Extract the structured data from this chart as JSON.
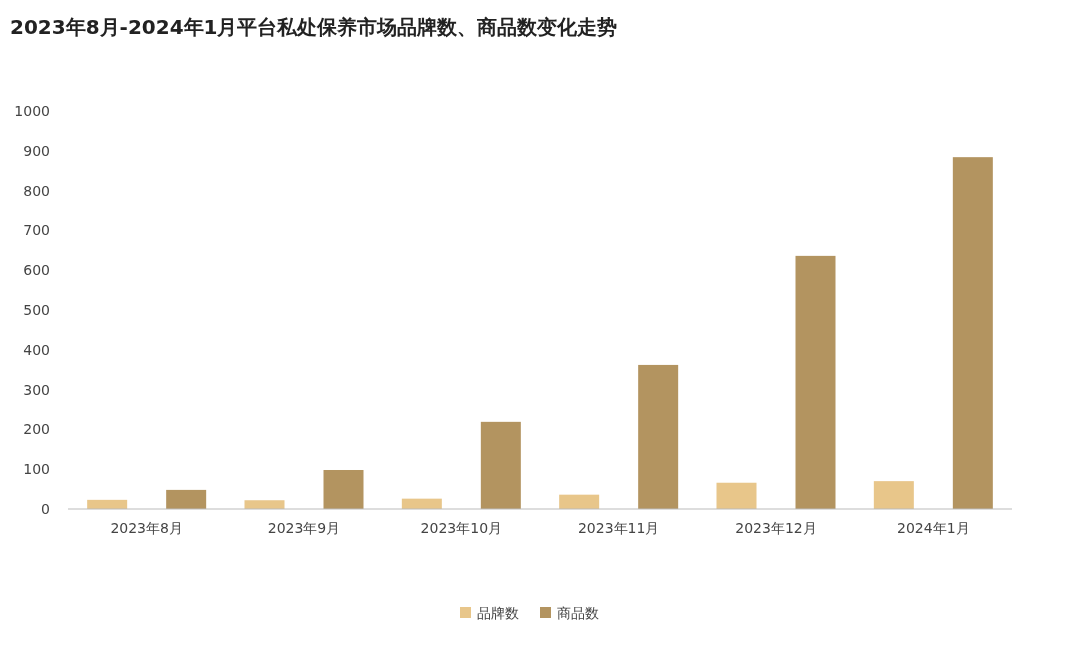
{
  "chart_data": {
    "type": "bar",
    "title": "2023年8月-2024年1月平台私处保养市场品牌数、商品数变化走势",
    "categories": [
      "2023年8月",
      "2023年9月",
      "2023年10月",
      "2023年11月",
      "2023年12月",
      "2024年1月"
    ],
    "series": [
      {
        "name": "品牌数",
        "color": "#e8c68a",
        "values": [
          23,
          22,
          26,
          36,
          66,
          70
        ]
      },
      {
        "name": "商品数",
        "color": "#b39460",
        "values": [
          48,
          98,
          219,
          362,
          636,
          884
        ]
      }
    ],
    "ylim": [
      0,
      1000
    ],
    "yticks": [
      0,
      100,
      200,
      300,
      400,
      500,
      600,
      700,
      800,
      900,
      1000
    ],
    "grid": false,
    "legend": "bottom"
  }
}
